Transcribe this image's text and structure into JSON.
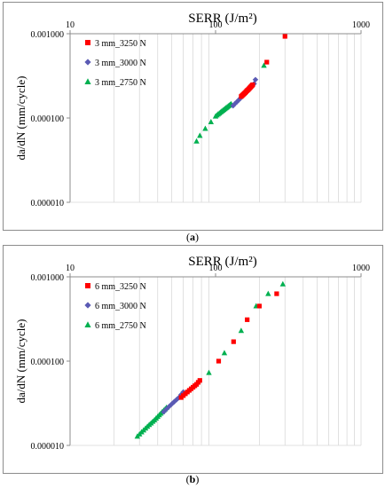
{
  "chart_data": [
    {
      "type": "scatter",
      "title": "SERR (J/m²)",
      "ylabel": "da/dN (mm/cycle)",
      "xscale": "log",
      "yscale": "log",
      "xlim": [
        10,
        1000
      ],
      "ylim": [
        1e-05,
        0.001
      ],
      "x_axis_position": "top",
      "x_ticks": [
        "10",
        "100",
        "1000"
      ],
      "y_ticks": [
        "0.000010",
        "0.000100",
        "0.001000"
      ],
      "grid": "vertical minor",
      "legend_position": "top-left",
      "series": [
        {
          "name": "3 mm_3250 N",
          "marker": "square",
          "color": "#ff0000",
          "x": [
            150,
            152,
            154,
            156,
            158,
            160,
            162,
            164,
            166,
            168,
            170,
            172,
            174,
            176,
            178,
            180,
            225,
            300
          ],
          "y": [
            0.00018,
            0.000184,
            0.000188,
            0.000192,
            0.000196,
            0.0002,
            0.000205,
            0.00021,
            0.000214,
            0.000218,
            0.000223,
            0.000228,
            0.000233,
            0.000238,
            0.000243,
            0.000248,
            0.00046,
            0.00093
          ]
        },
        {
          "name": "3 mm_3000 N",
          "marker": "diamond",
          "color": "#5a5ab4",
          "x": [
            132,
            136,
            140,
            144,
            148,
            152,
            156,
            160,
            164,
            168,
            172,
            176,
            180,
            184,
            188
          ],
          "y": [
            0.00014,
            0.000148,
            0.000155,
            0.000163,
            0.000171,
            0.00018,
            0.000189,
            0.000198,
            0.000207,
            0.000216,
            0.000225,
            0.000235,
            0.000245,
            0.000255,
            0.000285
          ]
        },
        {
          "name": "3 mm_2750 N",
          "marker": "triangle",
          "color": "#00b050",
          "x": [
            74,
            78,
            85,
            93,
            100,
            102,
            104,
            106,
            108,
            110,
            112,
            114,
            116,
            118,
            120,
            122,
            124,
            126,
            128,
            215
          ],
          "y": [
            5.3e-05,
            6.2e-05,
            7.5e-05,
            9e-05,
            0.000105,
            0.000108,
            0.000111,
            0.000114,
            0.000117,
            0.00012,
            0.000123,
            0.000126,
            0.000129,
            0.000132,
            0.000135,
            0.000138,
            0.000141,
            0.000144,
            0.000147,
            0.00042
          ]
        }
      ]
    },
    {
      "type": "scatter",
      "title": "SERR (J/m²)",
      "ylabel": "da/dN (mm/cycle)",
      "xscale": "log",
      "yscale": "log",
      "xlim": [
        10,
        1000
      ],
      "ylim": [
        1e-05,
        0.001
      ],
      "x_axis_position": "top",
      "x_ticks": [
        "10",
        "100",
        "1000"
      ],
      "y_ticks": [
        "0.000010",
        "0.000100",
        "0.001000"
      ],
      "grid": "vertical minor",
      "legend_position": "top-left",
      "series": [
        {
          "name": "6 mm_3250 N",
          "marker": "square",
          "color": "#ff0000",
          "x": [
            58,
            60,
            62,
            64,
            66,
            68,
            70,
            72,
            74,
            76,
            78,
            105,
            133,
            165,
            200,
            263
          ],
          "y": [
            3.7e-05,
            3.9e-05,
            4.1e-05,
            4.3e-05,
            4.5e-05,
            4.7e-05,
            4.9e-05,
            5.1e-05,
            5.3e-05,
            5.6e-05,
            5.9e-05,
            0.0001,
            0.00017,
            0.00031,
            0.00045,
            0.00063
          ]
        },
        {
          "name": "6 mm_3000 N",
          "marker": "diamond",
          "color": "#5a5ab4",
          "x": [
            44,
            46,
            48,
            50,
            52,
            54,
            56,
            58,
            60
          ],
          "y": [
            2.5e-05,
            2.7e-05,
            2.9e-05,
            3.1e-05,
            3.3e-05,
            3.5e-05,
            3.7e-05,
            4e-05,
            4.3e-05
          ]
        },
        {
          "name": "6 mm_2750 N",
          "marker": "triangle",
          "color": "#00b050",
          "x": [
            29,
            30,
            31,
            32,
            33,
            34,
            35,
            36,
            37,
            38,
            39,
            40,
            41,
            42,
            43,
            44,
            45,
            46,
            90,
            115,
            150,
            190,
            230,
            290
          ],
          "y": [
            1.28e-05,
            1.36e-05,
            1.44e-05,
            1.52e-05,
            1.6e-05,
            1.68e-05,
            1.76e-05,
            1.84e-05,
            1.92e-05,
            2e-05,
            2.1e-05,
            2.2e-05,
            2.3e-05,
            2.4e-05,
            2.5e-05,
            2.6e-05,
            2.7e-05,
            2.82e-05,
            7.3e-05,
            0.000125,
            0.00023,
            0.00045,
            0.00063,
            0.00082
          ]
        }
      ]
    }
  ],
  "captions": [
    {
      "open": "(",
      "letter": "a",
      "close": ")"
    },
    {
      "open": "(",
      "letter": "b",
      "close": ")"
    }
  ]
}
